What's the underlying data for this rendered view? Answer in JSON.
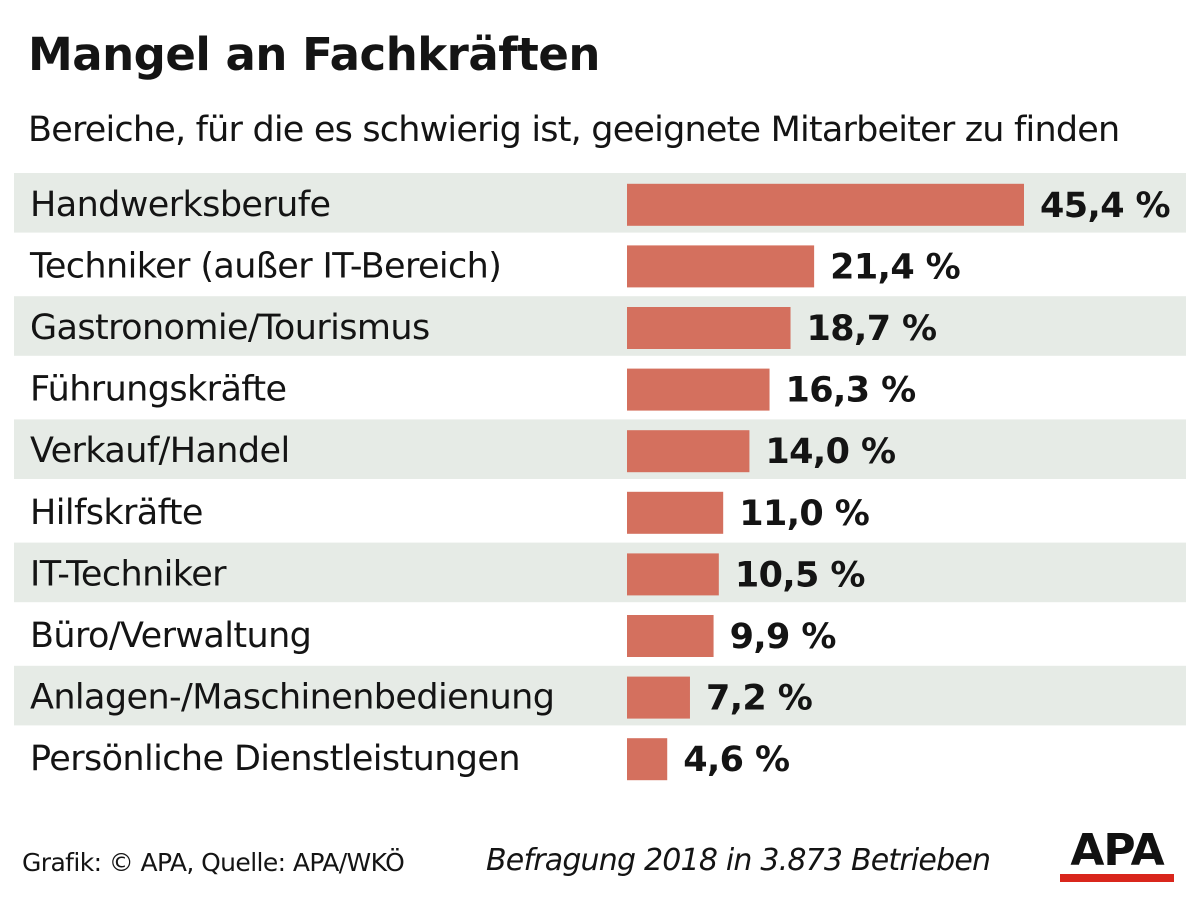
{
  "chart_data": {
    "type": "bar",
    "orientation": "horizontal",
    "title": "Mangel an Fachkräften",
    "subtitle": "Bereiche, für die es schwierig ist, geeignete Mitarbeiter zu finden",
    "categories": [
      "Handwerksberufe",
      "Techniker (außer IT-Bereich)",
      "Gastronomie/Tourismus",
      "Führungskräfte",
      "Verkauf/Handel",
      "Hilfskräfte",
      "IT-Techniker",
      "Büro/Verwaltung",
      "Anlagen-/Maschinenbedienung",
      "Persönliche Dienstleistungen"
    ],
    "values": [
      45.4,
      21.4,
      18.7,
      16.3,
      14.0,
      11.0,
      10.5,
      9.9,
      7.2,
      4.6
    ],
    "value_labels": [
      "45,4 %",
      "21,4 %",
      "18,7 %",
      "16,3 %",
      "14,0 %",
      "11,0 %",
      "10,5 %",
      "9,9 %",
      "7,2 %",
      "4,6 %"
    ],
    "unit": "%",
    "bar_color": "#d4705e",
    "row_shading_color": "#e6ebe6",
    "shaded_rows": "alternating, starting with first row"
  },
  "footer": {
    "source": "Grafik: © APA, Quelle: APA/WKÖ",
    "note": "Befragung 2018 in 3.873 Betrieben"
  },
  "logo": {
    "text": "APA",
    "bar_color": "#d9261c"
  }
}
